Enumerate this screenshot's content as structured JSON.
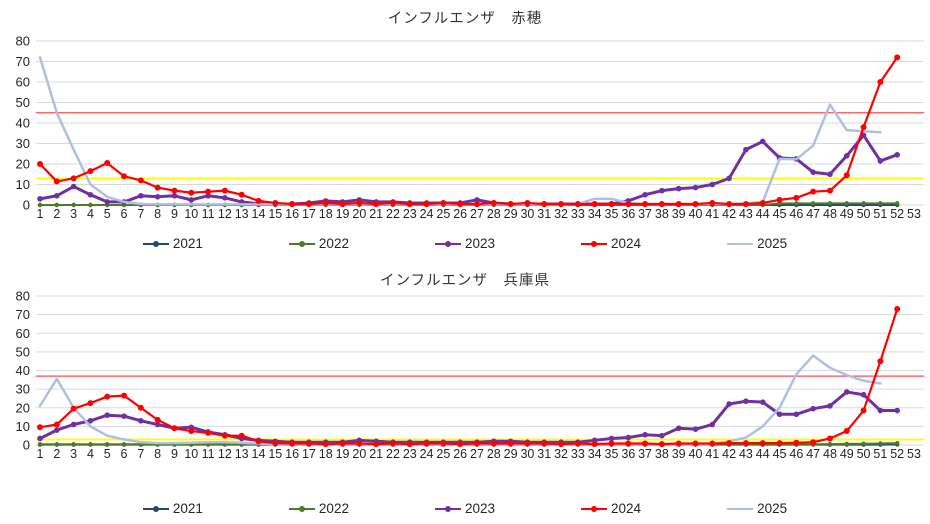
{
  "page": {
    "background": "#FFFFFF",
    "text_color": "#262626",
    "grid_color": "#D9D9D9"
  },
  "chart_data": [
    {
      "type": "line",
      "title": "インフルエンザ　赤穂",
      "xlabel": "",
      "ylabel": "",
      "ylim": [
        0,
        80
      ],
      "y_step": 10,
      "grid": true,
      "legend_position": "bottom",
      "categories": [
        1,
        2,
        3,
        4,
        5,
        6,
        7,
        8,
        9,
        10,
        11,
        12,
        13,
        14,
        15,
        16,
        17,
        18,
        19,
        20,
        21,
        22,
        23,
        24,
        25,
        26,
        27,
        28,
        29,
        30,
        31,
        32,
        33,
        34,
        35,
        36,
        37,
        38,
        39,
        40,
        41,
        42,
        43,
        44,
        45,
        46,
        47,
        48,
        49,
        50,
        51,
        52,
        53
      ],
      "reference_lines": [
        {
          "label": "alert-line",
          "value": 45,
          "color": "#FF4F4F",
          "width": 1.2
        },
        {
          "label": "caution-line",
          "value": 13,
          "color": "#FFFF00",
          "width": 1.8
        }
      ],
      "series": [
        {
          "name": "2021",
          "color": "#264478",
          "marker": true,
          "line_width": 2,
          "marker_r": 2.2,
          "values": [
            0,
            0,
            0,
            0,
            0,
            0,
            0,
            0,
            0,
            0,
            0,
            0,
            0,
            0,
            0,
            0,
            0,
            0,
            0,
            0,
            0,
            0,
            0,
            0,
            0,
            0,
            0,
            0,
            0,
            0,
            0,
            0,
            0,
            0,
            0,
            0,
            0,
            0,
            0,
            0,
            0,
            0,
            0,
            0,
            0,
            0,
            0,
            0,
            0,
            0,
            0,
            0,
            null
          ]
        },
        {
          "name": "2022",
          "color": "#4E7B27",
          "marker": true,
          "line_width": 2,
          "marker_r": 2.2,
          "values": [
            0,
            0,
            0,
            0,
            0,
            0,
            0,
            0,
            0,
            0,
            0,
            0,
            0,
            0,
            0,
            0,
            0,
            0,
            0,
            0,
            0,
            0,
            0,
            0,
            0,
            0,
            0,
            0,
            0,
            0,
            0,
            0,
            0,
            0,
            0,
            0,
            0,
            0,
            0,
            0,
            0,
            0,
            0,
            0,
            0.8,
            0.8,
            0.8,
            0.8,
            0.8,
            0.8,
            0.8,
            0.8,
            null
          ]
        },
        {
          "name": "2023",
          "color": "#7030A0",
          "marker": true,
          "line_width": 3,
          "marker_r": 2.8,
          "values": [
            3,
            4.5,
            9,
            5,
            1.5,
            1.5,
            4.5,
            4,
            4.5,
            2.5,
            4.5,
            3.5,
            1.5,
            0.5,
            0.5,
            0.5,
            1,
            2,
            1.5,
            2.5,
            1.5,
            1.5,
            1,
            1,
            1,
            1,
            2.5,
            1,
            0.5,
            0.5,
            0.5,
            0.5,
            0.5,
            0.5,
            0.5,
            2,
            5,
            7,
            8,
            8.5,
            10,
            13,
            27,
            31,
            23,
            22.5,
            16,
            15,
            24,
            34,
            21.5,
            24.5,
            null
          ]
        },
        {
          "name": "2024",
          "color": "#FF0000",
          "marker": true,
          "line_width": 2.2,
          "marker_r": 3,
          "values": [
            20,
            11.5,
            13,
            16.5,
            20.5,
            14,
            12,
            8.5,
            7,
            6,
            6.5,
            7,
            5,
            2,
            1,
            0.5,
            0.5,
            1,
            0.5,
            1,
            0.5,
            1,
            0.5,
            0.5,
            1,
            0.5,
            0.5,
            1,
            0.5,
            1,
            0.5,
            0.5,
            0.5,
            0.5,
            0.5,
            0.5,
            0.5,
            0.5,
            0.5,
            0.5,
            1,
            0.5,
            0.5,
            1,
            2.5,
            3.5,
            6.5,
            7,
            14.5,
            38,
            60,
            72,
            null
          ]
        },
        {
          "name": "2025",
          "color": "#AEBFE3",
          "marker": false,
          "line_width": 2.5,
          "marker_r": 0,
          "values": [
            72,
            45,
            27,
            10,
            4,
            1.5,
            0.5,
            0.3,
            0.3,
            0.3,
            0.3,
            0.3,
            0.3,
            0.3,
            0.3,
            0.3,
            0.3,
            0.3,
            0.3,
            0.3,
            0.3,
            0.3,
            0.3,
            0.3,
            0.3,
            0.3,
            0.3,
            0.3,
            0.3,
            0.3,
            0.3,
            0.3,
            0.5,
            3,
            3,
            1,
            0.5,
            0.5,
            0.5,
            0.5,
            0.5,
            0.5,
            0.8,
            1.5,
            22.5,
            22.3,
            29,
            49,
            36.5,
            36,
            35.5,
            null,
            null
          ]
        }
      ]
    },
    {
      "type": "line",
      "title": "インフルエンザ　兵庫県",
      "xlabel": "",
      "ylabel": "",
      "ylim": [
        0,
        80
      ],
      "y_step": 10,
      "grid": true,
      "legend_position": "bottom",
      "categories": [
        1,
        2,
        3,
        4,
        5,
        6,
        7,
        8,
        9,
        10,
        11,
        12,
        13,
        14,
        15,
        16,
        17,
        18,
        19,
        20,
        21,
        22,
        23,
        24,
        25,
        26,
        27,
        28,
        29,
        30,
        31,
        32,
        33,
        34,
        35,
        36,
        37,
        38,
        39,
        40,
        41,
        42,
        43,
        44,
        45,
        46,
        47,
        48,
        49,
        50,
        51,
        52,
        53
      ],
      "reference_lines": [
        {
          "label": "alert-line",
          "value": 37,
          "color": "#FF4F4F",
          "width": 1.2
        },
        {
          "label": "caution-line",
          "value": 3,
          "color": "#FFFF00",
          "width": 1.8
        }
      ],
      "series": [
        {
          "name": "2021",
          "color": "#264478",
          "marker": true,
          "line_width": 2,
          "marker_r": 2.2,
          "values": [
            0.2,
            0.2,
            0.2,
            0.2,
            0.2,
            0.2,
            0.2,
            0.2,
            0.2,
            0.2,
            0.2,
            0.2,
            0.2,
            0.2,
            0.2,
            0.2,
            0.2,
            0.2,
            0.2,
            0.2,
            0.2,
            0.2,
            0.2,
            0.2,
            0.2,
            0.2,
            0.2,
            0.2,
            0.2,
            0.2,
            0.2,
            0.2,
            0.2,
            0.2,
            0.2,
            0.2,
            0.2,
            0.2,
            0.2,
            0.2,
            0.2,
            0.2,
            0.2,
            0.2,
            0.2,
            0.2,
            0.2,
            0.2,
            0.2,
            0.2,
            0.2,
            0.3,
            null
          ]
        },
        {
          "name": "2022",
          "color": "#4E7B27",
          "marker": true,
          "line_width": 2,
          "marker_r": 2.2,
          "values": [
            0.4,
            0.4,
            0.4,
            0.4,
            0.4,
            0.4,
            0.4,
            0.4,
            0.4,
            0.4,
            0.4,
            0.4,
            0.4,
            0.4,
            0.4,
            0.4,
            0.4,
            0.4,
            0.4,
            0.4,
            0.4,
            0.4,
            0.4,
            0.4,
            0.4,
            0.4,
            0.4,
            0.4,
            0.4,
            0.4,
            0.4,
            0.4,
            0.4,
            0.4,
            0.4,
            0.4,
            0.4,
            0.4,
            0.4,
            0.4,
            0.4,
            0.4,
            0.4,
            0.4,
            0.4,
            0.4,
            0.4,
            0.5,
            0.6,
            0.7,
            0.8,
            1,
            null
          ]
        },
        {
          "name": "2023",
          "color": "#7030A0",
          "marker": true,
          "line_width": 3,
          "marker_r": 2.8,
          "values": [
            3.5,
            8,
            11,
            13,
            16,
            15.5,
            13,
            11,
            9,
            9.5,
            7,
            5.5,
            3.5,
            2.5,
            2,
            1.5,
            1.5,
            1.5,
            1.5,
            2.5,
            2,
            1.5,
            1.5,
            1.5,
            1.5,
            1.5,
            1.5,
            2,
            2,
            1.5,
            1.5,
            1.5,
            1.5,
            2.5,
            3.5,
            4,
            5.5,
            5,
            9,
            8.5,
            11,
            22,
            23.5,
            23,
            16.5,
            16.5,
            19.5,
            21,
            28.5,
            27,
            18.5,
            18.5,
            null
          ]
        },
        {
          "name": "2024",
          "color": "#FF0000",
          "marker": true,
          "line_width": 2.2,
          "marker_r": 3,
          "values": [
            9.5,
            11,
            19.5,
            22.5,
            26,
            26.5,
            20,
            13.5,
            9,
            7.5,
            6.5,
            5,
            5,
            2,
            1,
            0.8,
            0.8,
            0.5,
            0.8,
            0.8,
            0.5,
            0.8,
            0.5,
            0.8,
            0.8,
            0.5,
            0.8,
            0.8,
            0.8,
            0.8,
            0.8,
            0.5,
            0.8,
            0.5,
            0.8,
            0.8,
            0.8,
            0.5,
            0.8,
            0.8,
            0.8,
            1,
            1,
            1,
            1,
            1.2,
            1.5,
            3.5,
            7.5,
            18.5,
            45,
            73,
            null
          ]
        },
        {
          "name": "2025",
          "color": "#AEBFE3",
          "marker": false,
          "line_width": 2.5,
          "marker_r": 0,
          "values": [
            21,
            35.5,
            20,
            10,
            5,
            3,
            1.5,
            1,
            1,
            1.2,
            1.5,
            1.5,
            1.2,
            0.8,
            0.5,
            0.5,
            0.5,
            0.5,
            0.5,
            0.5,
            0.5,
            0.5,
            0.5,
            0.5,
            0.5,
            0.5,
            0.5,
            0.5,
            0.5,
            0.5,
            0.5,
            0.5,
            0.5,
            0.5,
            0.5,
            0.5,
            0.5,
            0.5,
            0.5,
            0.5,
            0.5,
            2,
            4,
            10,
            20,
            38,
            48,
            41.5,
            37.5,
            34.5,
            33,
            null,
            null
          ]
        }
      ]
    }
  ]
}
